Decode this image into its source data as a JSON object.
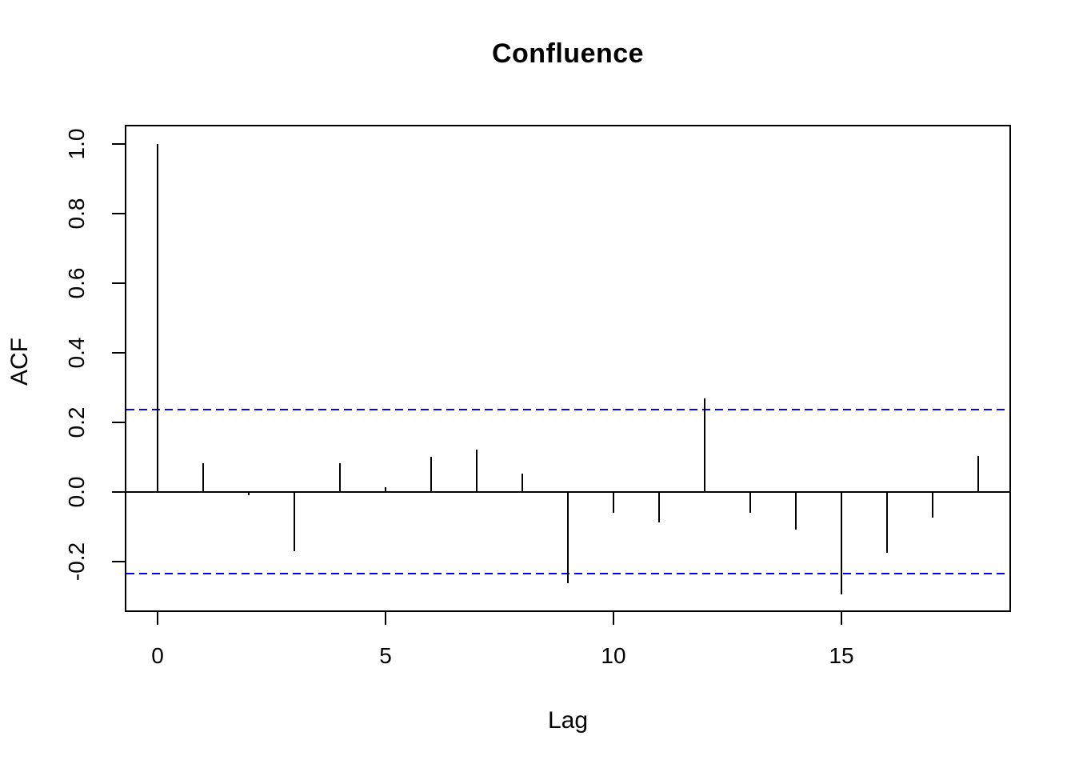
{
  "chart_data": {
    "type": "bar",
    "subtype": "acf-stem-plot",
    "title": "Confluence",
    "xlabel": "Lag",
    "ylabel": "ACF",
    "x": [
      0,
      1,
      2,
      3,
      4,
      5,
      6,
      7,
      8,
      9,
      10,
      11,
      12,
      13,
      14,
      15,
      16,
      17,
      18
    ],
    "values": [
      1.0,
      0.083,
      -0.01,
      -0.172,
      0.083,
      0.012,
      0.101,
      0.121,
      0.052,
      -0.264,
      -0.061,
      -0.089,
      0.268,
      -0.061,
      -0.108,
      -0.295,
      -0.175,
      -0.074,
      0.103
    ],
    "confidence_bounds": {
      "upper": 0.236,
      "lower": -0.236,
      "line_style": "dashed"
    },
    "x_ticks": [
      0,
      5,
      10,
      15
    ],
    "x_tick_labels": [
      "0",
      "5",
      "10",
      "15"
    ],
    "y_ticks": [
      1.0,
      0.8,
      0.6,
      0.4,
      0.2,
      0.0,
      -0.2
    ],
    "y_tick_labels": [
      "1.0",
      "0.8",
      "0.6",
      "0.4",
      "0.2",
      "0.0",
      "-0.2"
    ],
    "xlim": [
      -0.72,
      18.72
    ],
    "ylim": [
      -0.346,
      1.056
    ],
    "grid": false,
    "legend": null,
    "colors": {
      "stem": "#000000",
      "axis": "#000000",
      "ci_line": "#0000ff",
      "background": "#ffffff",
      "text": "#000000"
    }
  }
}
